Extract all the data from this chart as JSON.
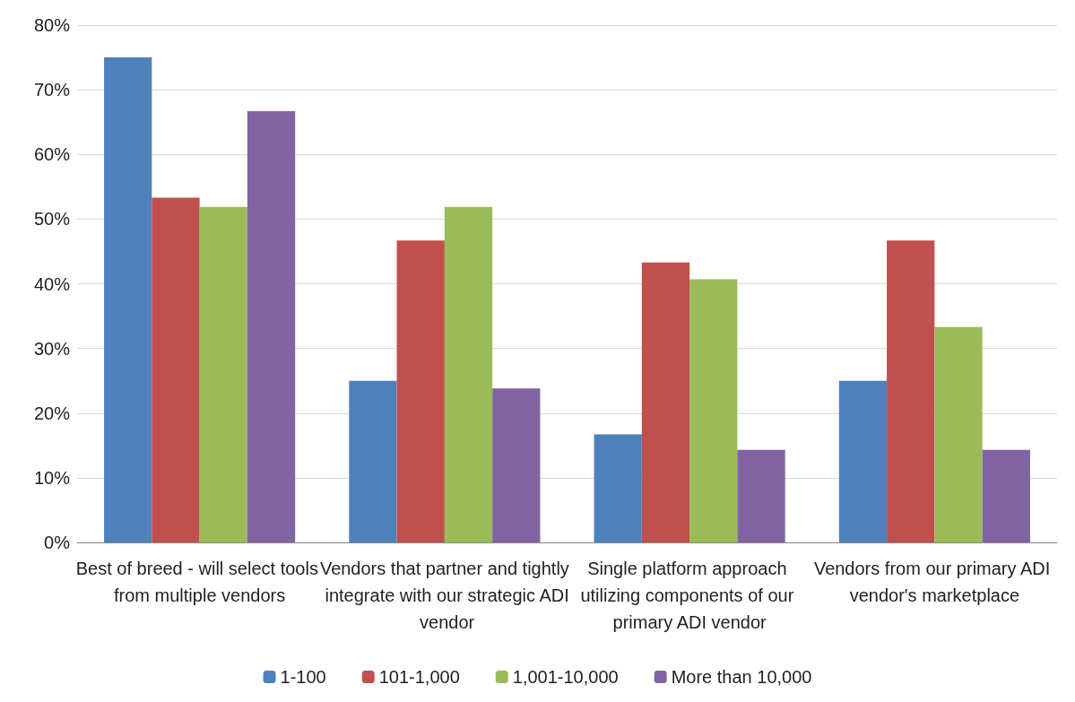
{
  "chart_data": {
    "type": "bar",
    "categories": [
      "Best of breed - will select tools from multiple vendors",
      "Vendors that partner and tightly integrate with our strategic ADI vendor",
      "Single platform approach utilizing components of our primary ADI vendor",
      "Vendors from our primary ADI vendor's marketplace"
    ],
    "series": [
      {
        "name": "1-100",
        "color": "#4f81bd",
        "values": [
          75,
          25,
          16.7,
          25
        ]
      },
      {
        "name": "101-1,000",
        "color": "#c0504d",
        "values": [
          53.3,
          46.7,
          43.3,
          46.7
        ]
      },
      {
        "name": "1,001-10,000",
        "color": "#9bbb59",
        "values": [
          51.9,
          51.9,
          40.7,
          33.3
        ]
      },
      {
        "name": "More than 10,000",
        "color": "#8064a2",
        "values": [
          66.7,
          23.8,
          14.3,
          14.3
        ]
      }
    ],
    "ylim": [
      0,
      80
    ],
    "yticks": [
      {
        "value": 0,
        "label": "0%"
      },
      {
        "value": 10,
        "label": "10%"
      },
      {
        "value": 20,
        "label": "20%"
      },
      {
        "value": 30,
        "label": "30%"
      },
      {
        "value": 40,
        "label": "40%"
      },
      {
        "value": 50,
        "label": "50%"
      },
      {
        "value": 60,
        "label": "60%"
      },
      {
        "value": 70,
        "label": "70%"
      },
      {
        "value": 80,
        "label": "80%"
      }
    ],
    "grid": "y",
    "legend": "bottom"
  }
}
